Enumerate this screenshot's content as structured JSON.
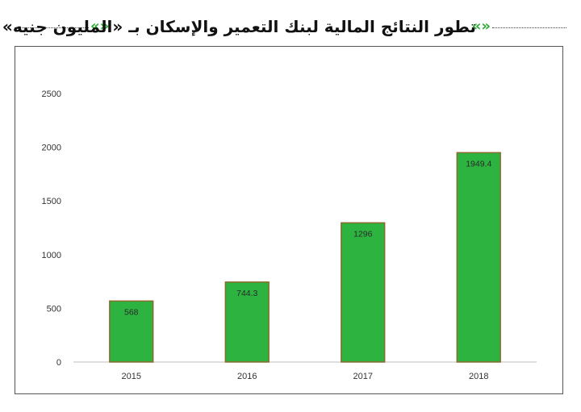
{
  "header": {
    "title": "تطور النتائج المالية لبنك التعمير والإسكان بـ «المليون جنيه»",
    "decoration_left": "«»",
    "decoration_right": "«»"
  },
  "colors": {
    "bar_fill": "#2db33f",
    "bar_border": "#8b6a2e",
    "accent_green": "#2fa836",
    "axis_line": "#bfbfbf"
  },
  "chart_data": {
    "type": "bar",
    "categories": [
      "2015",
      "2016",
      "2017",
      "2018"
    ],
    "values": [
      568,
      744.3,
      1296,
      1949.4
    ],
    "data_labels": [
      "568",
      "744.3",
      "1296",
      "1949.4"
    ],
    "y_ticks": [
      "0",
      "500",
      "1000",
      "1500",
      "2000",
      "2500"
    ],
    "ylim": [
      0,
      2500
    ],
    "grid": false,
    "legend": "none"
  }
}
